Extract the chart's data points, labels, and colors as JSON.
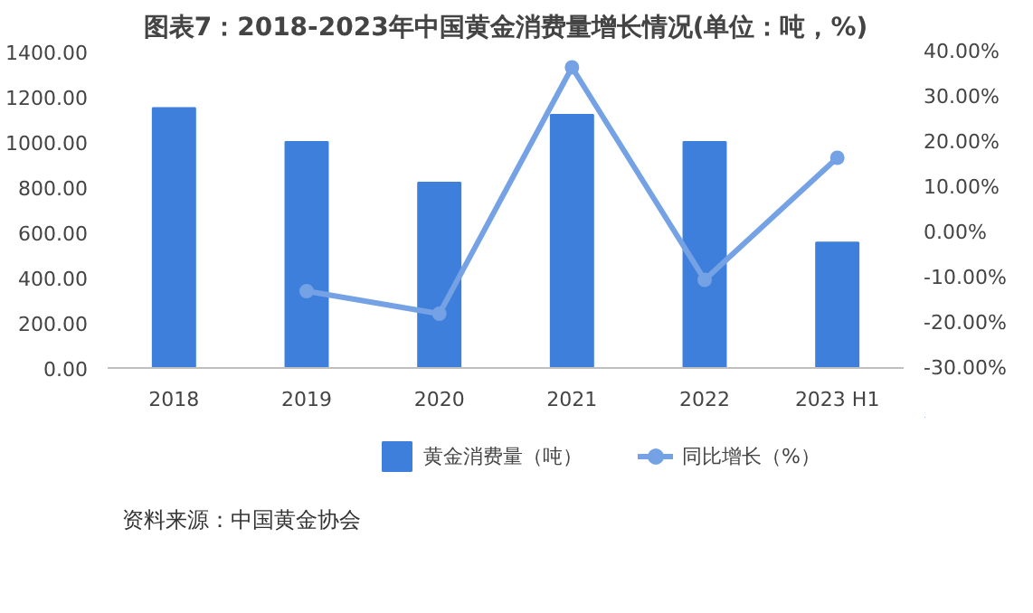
{
  "chart_data": {
    "type": "bar",
    "title": "图表7：2018-2023年中国黄金消费量增长情况(单位：吨，%)",
    "categories": [
      "2018",
      "2019",
      "2020",
      "2021",
      "2022",
      "2023 H1"
    ],
    "series": [
      {
        "name": "黄金消费量（吨）",
        "color": "#3f7fdc",
        "values": [
          1150,
          1000,
          820,
          1120,
          1000,
          555
        ]
      },
      {
        "name": "同比增长（%）",
        "type": "line",
        "axis": "y2",
        "color": "#74a2e4",
        "marker": "circle",
        "values": [
          null,
          -13,
          -18,
          36.5,
          -10.5,
          16.5
        ]
      }
    ],
    "ylim": [
      0,
      1400
    ],
    "yticks": [
      {
        "value": 0,
        "label": "0.00"
      },
      {
        "value": 200,
        "label": "200.00"
      },
      {
        "value": 400,
        "label": "400.00"
      },
      {
        "value": 600,
        "label": "600.00"
      },
      {
        "value": 800,
        "label": "800.00"
      },
      {
        "value": 1000,
        "label": "1000.00"
      },
      {
        "value": 1200,
        "label": "1200.00"
      },
      {
        "value": 1400,
        "label": "1400.00"
      }
    ],
    "y2lim": [
      -30,
      40
    ],
    "y2ticks": [
      {
        "value": -30,
        "label": "-30.00%"
      },
      {
        "value": -20,
        "label": "-20.00%"
      },
      {
        "value": -10,
        "label": "-10.00%"
      },
      {
        "value": 0,
        "label": "0.00%"
      },
      {
        "value": 10,
        "label": "10.00%"
      },
      {
        "value": 20,
        "label": "20.00%"
      },
      {
        "value": 30,
        "label": "30.00%"
      },
      {
        "value": 40,
        "label": "40.00%"
      }
    ],
    "grid": false,
    "legend": "bottom",
    "annotations": [
      "资料来源：中国黄金协会"
    ]
  }
}
